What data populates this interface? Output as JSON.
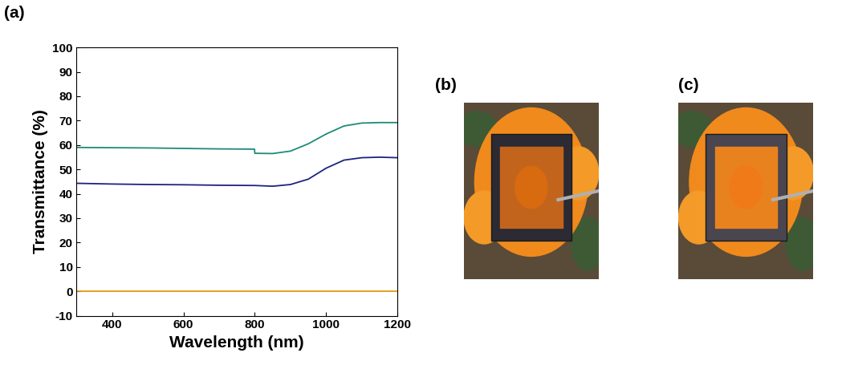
{
  "panel_labels": [
    "(a)",
    "(b)",
    "(c)"
  ],
  "chart_data": {
    "type": "line",
    "xlabel": "Wavelength (nm)",
    "ylabel": "Transmittance (%)",
    "x": [
      300,
      400,
      500,
      600,
      700,
      799,
      800,
      850,
      900,
      950,
      1000,
      1050,
      1100,
      1150,
      1200
    ],
    "series": [
      {
        "color": "#1f8a7a",
        "values": [
          59,
          58.9,
          58.8,
          58.6,
          58.4,
          58.3,
          56.6,
          56.5,
          57.5,
          60.5,
          64.5,
          67.8,
          69,
          69.2,
          69.2
        ]
      },
      {
        "color": "#1c2480",
        "values": [
          44.3,
          44,
          43.8,
          43.7,
          43.5,
          43.4,
          43.4,
          43.1,
          43.8,
          46,
          50.5,
          53.8,
          54.8,
          55,
          54.8
        ]
      },
      {
        "color": "#e8960c",
        "values": [
          0,
          0,
          0,
          0,
          0,
          0,
          0,
          0,
          0,
          0,
          0,
          0,
          0,
          0,
          0
        ]
      }
    ],
    "xlim": [
      300,
      1200
    ],
    "xticks": [
      400,
      600,
      800,
      1000,
      1200
    ],
    "ylim": [
      -10,
      100
    ],
    "yticks": [
      -10,
      0,
      10,
      20,
      30,
      40,
      50,
      60,
      70,
      80,
      90,
      100
    ],
    "grid": false
  }
}
